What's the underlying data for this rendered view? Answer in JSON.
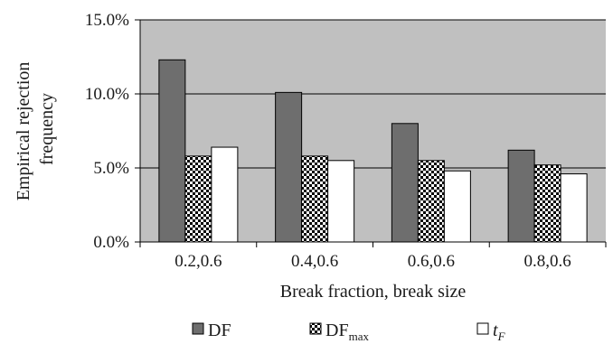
{
  "chart_data": {
    "type": "bar",
    "title": "",
    "xlabel": "Break fraction, break size",
    "ylabel_line1": "Empirical rejection",
    "ylabel_line2": "frequency",
    "ylim": [
      0,
      15
    ],
    "yticks": [
      "0.0%",
      "5.0%",
      "10.0%",
      "15.0%"
    ],
    "ytick_values": [
      0,
      5,
      10,
      15
    ],
    "categories": [
      "0.2,0.6",
      "0.4,0.6",
      "0.6,0.6",
      "0.8,0.6"
    ],
    "series": [
      {
        "name": "DF",
        "legend_main": "DF",
        "legend_sub": "",
        "legend_style": "normal",
        "values": [
          12.3,
          10.1,
          8.0,
          6.2
        ],
        "fill": "#6e6e6e",
        "pattern": "solid"
      },
      {
        "name": "DFmax",
        "legend_main": "DF",
        "legend_sub": "max",
        "legend_style": "normal",
        "values": [
          5.8,
          5.8,
          5.5,
          5.2
        ],
        "fill": "#000000",
        "pattern": "checker"
      },
      {
        "name": "tF",
        "legend_main": "t",
        "legend_sub": "F",
        "legend_style": "italic",
        "values": [
          6.4,
          5.5,
          4.8,
          4.6
        ],
        "fill": "#ffffff",
        "pattern": "solid"
      }
    ],
    "grid": true,
    "legend_position": "bottom",
    "plot_background": "#c0c0c0"
  }
}
